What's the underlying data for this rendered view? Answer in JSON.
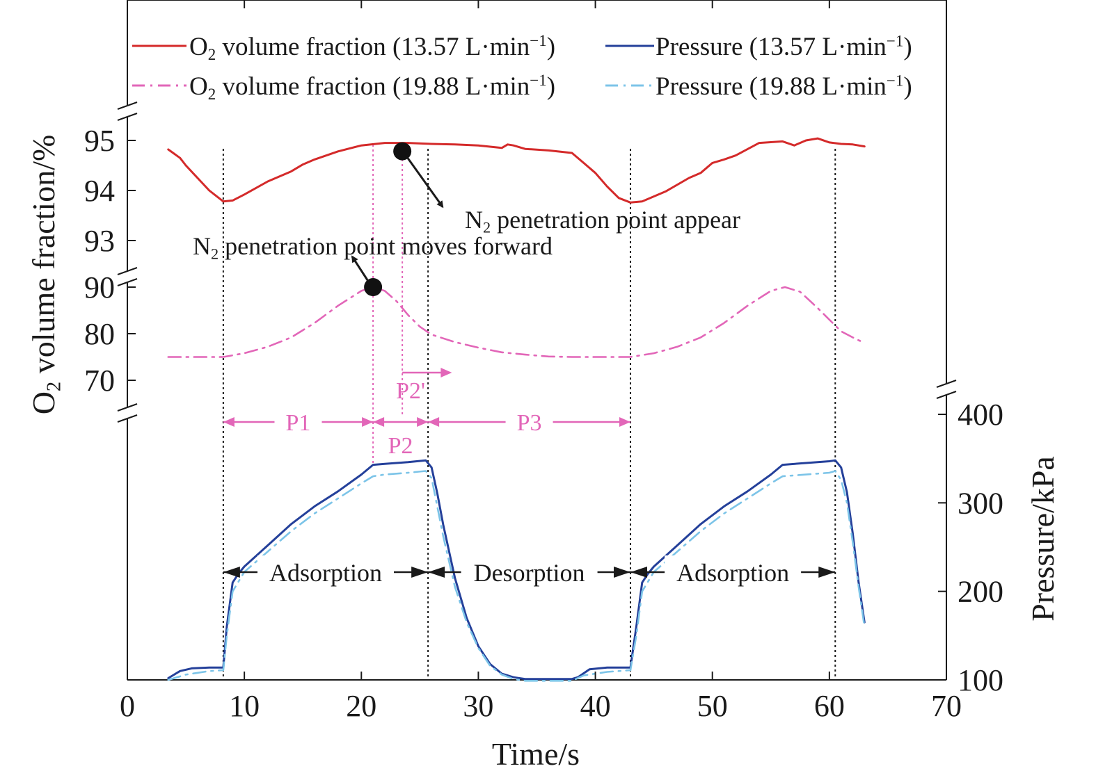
{
  "chart_data": {
    "type": "line",
    "xlabel": "Time/s",
    "ylabel": "O2 volume fraction/%",
    "ylabel_parts": {
      "base": "O",
      "sub": "2",
      "rest": " volume fraction/%"
    },
    "y2label": "Pressure/kPa",
    "xlim": [
      0,
      70
    ],
    "x_ticks": [
      0,
      10,
      20,
      30,
      40,
      50,
      60,
      70
    ],
    "y_ticks_upper": [
      93,
      94,
      95
    ],
    "y_ticks_middle": [
      70,
      80,
      90
    ],
    "y2_ticks": [
      100,
      200,
      300,
      400
    ],
    "y2lim": [
      100,
      400
    ],
    "grid": false,
    "legend": {
      "placement": "top",
      "entries": [
        {
          "key": "o2_1357",
          "prefix": "O",
          "sub": "2",
          "text": " volume fraction (13.57 L·min",
          "sup": "−1",
          "suffix": ")",
          "color": "#d42a2a",
          "style": "solid"
        },
        {
          "key": "p_1357",
          "prefix": "",
          "sub": "",
          "text": "Pressure (13.57 L·min",
          "sup": "−1",
          "suffix": ")",
          "color": "#24409a",
          "style": "solid"
        },
        {
          "key": "o2_1988",
          "prefix": "O",
          "sub": "2",
          "text": " volume fraction (19.88 L·min",
          "sup": "−1",
          "suffix": ")",
          "color": "#e266b8",
          "style": "dashdot"
        },
        {
          "key": "p_1988",
          "prefix": "",
          "sub": "",
          "text": "Pressure (19.88 L·min",
          "sup": "−1",
          "suffix": ")",
          "color": "#7cc4e8",
          "style": "dashdot"
        }
      ]
    },
    "series": [
      {
        "key": "o2_1357",
        "name": "O2 volume fraction (13.57 L·min−1)",
        "axis": "upper",
        "color": "#d42a2a",
        "style": "solid",
        "x": [
          3.5,
          4.5,
          5,
          6,
          7,
          8.2,
          9,
          10,
          12,
          14,
          15,
          16,
          18,
          20,
          22,
          24,
          26,
          28,
          30,
          32,
          32.5,
          33,
          34,
          36,
          38,
          39,
          40,
          41,
          42,
          43,
          44,
          46,
          48,
          49,
          50,
          51,
          52,
          54,
          56,
          57,
          58,
          59,
          60,
          61,
          62,
          63
        ],
        "y": [
          94.82,
          94.65,
          94.5,
          94.25,
          94.0,
          93.78,
          93.8,
          93.92,
          94.18,
          94.38,
          94.52,
          94.62,
          94.78,
          94.9,
          94.95,
          94.95,
          94.93,
          94.92,
          94.9,
          94.85,
          94.92,
          94.9,
          94.83,
          94.8,
          94.75,
          94.55,
          94.35,
          94.08,
          93.85,
          93.76,
          93.78,
          93.98,
          94.25,
          94.35,
          94.55,
          94.62,
          94.7,
          94.95,
          94.98,
          94.9,
          95.0,
          95.04,
          94.96,
          94.93,
          94.92,
          94.88
        ]
      },
      {
        "key": "o2_1988",
        "name": "O2 volume fraction (19.88 L·min−1)",
        "axis": "middle",
        "color": "#e266b8",
        "style": "dashdot",
        "x": [
          3.5,
          6,
          8.2,
          10,
          12,
          14,
          16,
          18,
          20,
          21,
          22,
          23,
          24,
          25,
          26,
          28,
          30,
          32,
          34,
          36,
          38,
          40,
          42,
          43,
          45,
          47,
          49,
          51,
          53,
          55,
          56.2,
          57.5,
          59,
          60,
          61,
          62,
          63
        ],
        "y": [
          75,
          75,
          75,
          75.8,
          77.2,
          79.2,
          82.3,
          86,
          89.2,
          90,
          89.2,
          87,
          84,
          81.5,
          79.8,
          78.2,
          77,
          76,
          75.5,
          75.1,
          75,
          75,
          75,
          75,
          75.8,
          77.2,
          79.2,
          82.3,
          86,
          89.2,
          90,
          89,
          85.5,
          83,
          80.5,
          79.2,
          78
        ]
      },
      {
        "key": "p_1357",
        "name": "Pressure (13.57 L·min−1)",
        "axis": "right",
        "color": "#24409a",
        "style": "solid",
        "x": [
          3.5,
          4.5,
          5.5,
          7,
          8.2,
          8.5,
          9,
          9.5,
          10,
          12,
          14,
          16,
          18,
          20,
          21,
          22,
          24,
          25.5,
          26,
          26.5,
          27,
          28,
          29,
          30,
          31,
          32,
          33,
          34,
          36,
          38,
          38.5,
          39.5,
          41,
          43,
          43.5,
          44,
          44.5,
          45,
          47,
          49,
          51,
          53,
          55,
          56,
          58,
          60,
          60.5,
          61,
          61.5,
          62,
          62.5,
          63
        ],
        "y": [
          102,
          110,
          113,
          114,
          114,
          160,
          210,
          220,
          228,
          252,
          276,
          296,
          313,
          332,
          343,
          344,
          346,
          348,
          340,
          310,
          275,
          215,
          170,
          138,
          118,
          107,
          103,
          101,
          101,
          101,
          103,
          112,
          114,
          114,
          160,
          210,
          220,
          228,
          252,
          276,
          296,
          313,
          332,
          343,
          345,
          347,
          348,
          340,
          312,
          265,
          210,
          165
        ]
      },
      {
        "key": "p_1988",
        "name": "Pressure (19.88 L·min−1)",
        "axis": "right",
        "color": "#7cc4e8",
        "style": "dashdot",
        "x": [
          3.5,
          5,
          7,
          8.2,
          8.5,
          9,
          10,
          12,
          14,
          16,
          18,
          20,
          21,
          22,
          24,
          25.5,
          26,
          27,
          28,
          29,
          30,
          31,
          32,
          33,
          34,
          36,
          38,
          39,
          41,
          43,
          43.5,
          44,
          45,
          47,
          49,
          51,
          53,
          55,
          56,
          58,
          60,
          60.5,
          61,
          61.5,
          62,
          62.5,
          63
        ],
        "y": [
          100,
          106,
          110,
          111,
          150,
          200,
          222,
          245,
          268,
          288,
          305,
          322,
          330,
          332,
          334,
          336,
          328,
          262,
          205,
          165,
          136,
          116,
          106,
          101,
          99,
          99,
          99,
          105,
          109,
          111,
          150,
          200,
          222,
          245,
          268,
          288,
          305,
          322,
          330,
          332,
          334,
          336,
          326,
          300,
          255,
          205,
          160
        ]
      }
    ],
    "vertical_markers": [
      {
        "x": 8.2,
        "color": "#1a1a1a"
      },
      {
        "x": 25.7,
        "color": "#1a1a1a"
      },
      {
        "x": 43.0,
        "color": "#1a1a1a"
      },
      {
        "x": 60.5,
        "color": "#1a1a1a"
      },
      {
        "x": 21.0,
        "color": "#e266b8"
      },
      {
        "x": 23.5,
        "color": "#e266b8"
      }
    ],
    "annotations": [
      {
        "key": "pen_appear",
        "prefix": "N",
        "sub": "2",
        "text": " penetration point appear",
        "point": {
          "x": 23.5,
          "y": 94.95
        },
        "text_x": 28.5,
        "text_y": 93.4
      },
      {
        "key": "pen_forward",
        "prefix": "N",
        "sub": "2",
        "text": " penetration point moves forward",
        "point": {
          "x": 21.0,
          "y": 90
        },
        "text_x": 5.7,
        "text_y": 92.8
      }
    ],
    "periods": [
      {
        "label": "P1",
        "from": 8.2,
        "to": 21.0
      },
      {
        "label": "P2",
        "from": 21.0,
        "to": 25.7
      },
      {
        "label": "P3",
        "from": 25.7,
        "to": 43.0
      },
      {
        "label": "P2'",
        "from": 23.5,
        "to": 27.5
      }
    ],
    "phases": [
      {
        "label": "Adsorption",
        "from": 8.2,
        "to": 25.7
      },
      {
        "label": "Desorption",
        "from": 25.7,
        "to": 43.0
      },
      {
        "label": "Adsorption",
        "from": 43.0,
        "to": 60.5
      }
    ]
  }
}
